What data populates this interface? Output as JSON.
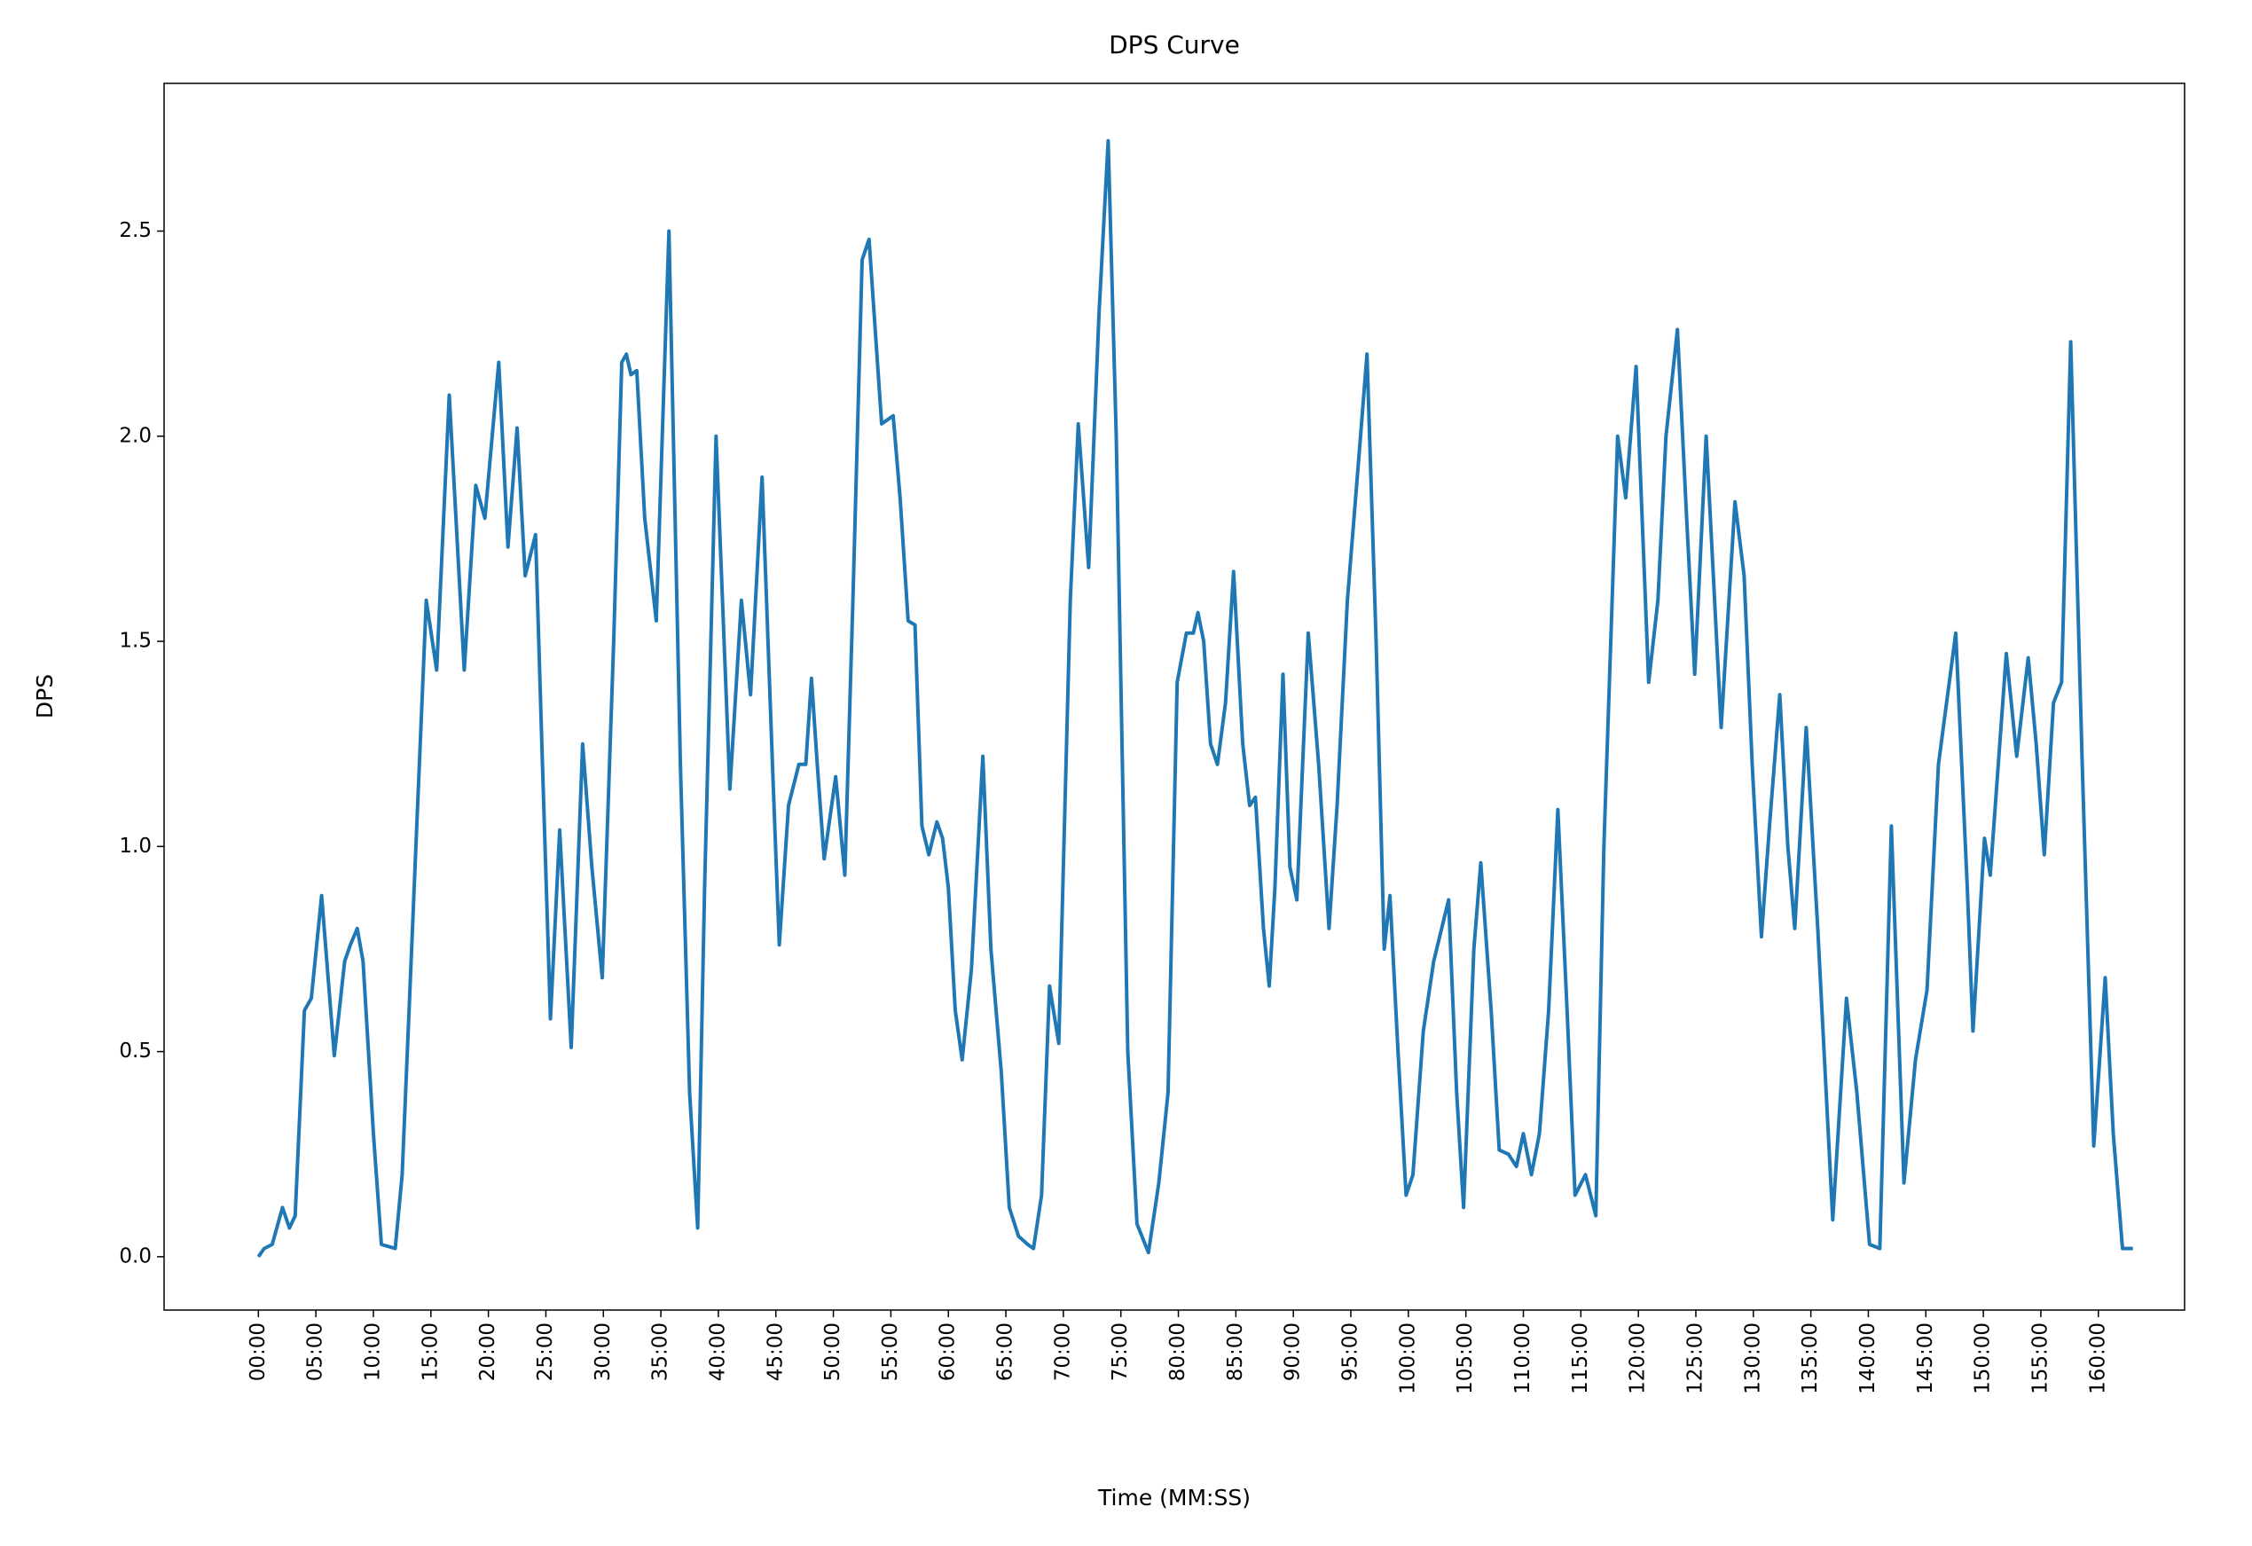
{
  "chart_data": {
    "type": "line",
    "title": "DPS Curve",
    "x_label": "Time (MM:SS)",
    "y_label": "DPS",
    "xlim": [
      -8.2,
      167.5
    ],
    "ylim": [
      -0.13,
      2.86
    ],
    "xticks": [
      {
        "value": 0,
        "label": "00:00"
      },
      {
        "value": 5,
        "label": "05:00"
      },
      {
        "value": 10,
        "label": "10:00"
      },
      {
        "value": 15,
        "label": "15:00"
      },
      {
        "value": 20,
        "label": "20:00"
      },
      {
        "value": 25,
        "label": "25:00"
      },
      {
        "value": 30,
        "label": "30:00"
      },
      {
        "value": 35,
        "label": "35:00"
      },
      {
        "value": 40,
        "label": "40:00"
      },
      {
        "value": 45,
        "label": "45:00"
      },
      {
        "value": 50,
        "label": "50:00"
      },
      {
        "value": 55,
        "label": "55:00"
      },
      {
        "value": 60,
        "label": "60:00"
      },
      {
        "value": 65,
        "label": "65:00"
      },
      {
        "value": 70,
        "label": "70:00"
      },
      {
        "value": 75,
        "label": "75:00"
      },
      {
        "value": 80,
        "label": "80:00"
      },
      {
        "value": 85,
        "label": "85:00"
      },
      {
        "value": 90,
        "label": "90:00"
      },
      {
        "value": 95,
        "label": "95:00"
      },
      {
        "value": 100,
        "label": "100:00"
      },
      {
        "value": 105,
        "label": "105:00"
      },
      {
        "value": 110,
        "label": "110:00"
      },
      {
        "value": 115,
        "label": "115:00"
      },
      {
        "value": 120,
        "label": "120:00"
      },
      {
        "value": 125,
        "label": "125:00"
      },
      {
        "value": 130,
        "label": "130:00"
      },
      {
        "value": 135,
        "label": "135:00"
      },
      {
        "value": 140,
        "label": "140:00"
      },
      {
        "value": 145,
        "label": "145:00"
      },
      {
        "value": 150,
        "label": "150:00"
      },
      {
        "value": 155,
        "label": "155:00"
      },
      {
        "value": 160,
        "label": "160:00"
      }
    ],
    "yticks": [
      {
        "value": 0,
        "label": "0.0"
      },
      {
        "value": 0.5,
        "label": "0.5"
      },
      {
        "value": 1,
        "label": "1.0"
      },
      {
        "value": 1.5,
        "label": "1.5"
      },
      {
        "value": 2,
        "label": "2.0"
      },
      {
        "value": 2.5,
        "label": "2.5"
      }
    ],
    "grid": false,
    "x": [
      0,
      0.5,
      1.2,
      2.1,
      2.7,
      3.2,
      4.0,
      4.6,
      5.5,
      6.6,
      7.5,
      8.0,
      8.6,
      9.1,
      10.0,
      10.7,
      11.9,
      12.5,
      13.1,
      13.7,
      14.6,
      15.5,
      16.6,
      17.9,
      18.9,
      19.7,
      20.9,
      21.7,
      22.5,
      23.2,
      24.1,
      24.7,
      25.4,
      26.2,
      27.2,
      28.2,
      29.0,
      29.9,
      30.9,
      31.6,
      32.0,
      32.4,
      32.9,
      33.6,
      34.6,
      35.7,
      36.7,
      37.5,
      38.2,
      38.8,
      39.8,
      41.0,
      42.0,
      42.8,
      43.8,
      44.7,
      45.3,
      46.1,
      47.0,
      47.6,
      48.1,
      48.6,
      49.2,
      50.2,
      51.0,
      51.7,
      52.5,
      53.1,
      54.2,
      55.2,
      55.8,
      56.5,
      57.1,
      57.7,
      58.3,
      59.0,
      59.5,
      60.0,
      60.6,
      61.2,
      62.0,
      63.0,
      63.7,
      64.6,
      65.3,
      66.1,
      66.9,
      67.4,
      68.1,
      68.8,
      69.6,
      70.6,
      71.3,
      72.2,
      73.1,
      73.9,
      74.6,
      75.6,
      76.4,
      77.4,
      78.3,
      79.1,
      79.9,
      80.7,
      81.3,
      81.7,
      82.2,
      82.8,
      83.4,
      84.1,
      84.8,
      85.6,
      86.2,
      86.7,
      87.4,
      87.9,
      88.4,
      89.1,
      89.7,
      90.3,
      91.3,
      92.2,
      93.1,
      93.8,
      94.7,
      95.7,
      96.4,
      97.2,
      97.9,
      98.4,
      99.1,
      99.8,
      100.4,
      101.3,
      102.2,
      102.9,
      103.5,
      104.2,
      104.8,
      105.7,
      106.3,
      107.2,
      107.9,
      108.7,
      109.4,
      110.0,
      110.7,
      111.4,
      112.2,
      113.0,
      113.8,
      114.5,
      115.4,
      116.3,
      117.0,
      118.2,
      118.9,
      119.8,
      120.9,
      121.7,
      122.4,
      123.4,
      124.2,
      124.9,
      125.9,
      127.2,
      128.4,
      129.2,
      129.9,
      130.7,
      131.4,
      132.3,
      133.0,
      133.6,
      134.6,
      135.6,
      136.9,
      138.1,
      139.0,
      140.1,
      141.0,
      142.0,
      143.1,
      144.1,
      145.1,
      146.1,
      147.6,
      148.6,
      149.1,
      150.1,
      150.6,
      152.0,
      152.9,
      153.9,
      154.6,
      155.3,
      156.1,
      156.8,
      157.6,
      158.6,
      159.6,
      160.6,
      161.3,
      162.1,
      163.0
    ],
    "series": [
      {
        "name": "DPS",
        "color": "#1f77b4",
        "values": [
          0,
          0.02,
          0.03,
          0.12,
          0.07,
          0.1,
          0.6,
          0.63,
          0.88,
          0.49,
          0.72,
          0.76,
          0.8,
          0.72,
          0.3,
          0.03,
          0.02,
          0.2,
          0.6,
          1.0,
          1.6,
          1.43,
          2.1,
          1.43,
          1.88,
          1.8,
          2.18,
          1.73,
          2.02,
          1.66,
          1.76,
          1.2,
          0.58,
          1.04,
          0.51,
          1.25,
          0.95,
          0.68,
          1.5,
          2.18,
          2.2,
          2.15,
          2.16,
          1.8,
          1.55,
          2.5,
          1.2,
          0.4,
          0.07,
          0.9,
          2.0,
          1.14,
          1.6,
          1.37,
          1.9,
          1.2,
          0.76,
          1.1,
          1.2,
          1.2,
          1.41,
          1.2,
          0.97,
          1.17,
          0.93,
          1.6,
          2.43,
          2.48,
          2.03,
          2.05,
          1.85,
          1.55,
          1.54,
          1.05,
          0.98,
          1.06,
          1.02,
          0.9,
          0.6,
          0.48,
          0.7,
          1.22,
          0.75,
          0.45,
          0.12,
          0.05,
          0.03,
          0.02,
          0.15,
          0.66,
          0.52,
          1.6,
          2.03,
          1.68,
          2.3,
          2.72,
          2.0,
          0.5,
          0.08,
          0.01,
          0.18,
          0.4,
          1.4,
          1.52,
          1.52,
          1.57,
          1.5,
          1.25,
          1.2,
          1.35,
          1.67,
          1.25,
          1.1,
          1.12,
          0.8,
          0.66,
          0.9,
          1.42,
          0.95,
          0.87,
          1.52,
          1.2,
          0.8,
          1.1,
          1.6,
          1.95,
          2.2,
          1.5,
          0.75,
          0.88,
          0.5,
          0.15,
          0.2,
          0.55,
          0.72,
          0.8,
          0.87,
          0.4,
          0.12,
          0.75,
          0.96,
          0.6,
          0.26,
          0.25,
          0.22,
          0.3,
          0.2,
          0.3,
          0.6,
          1.09,
          0.6,
          0.15,
          0.2,
          0.1,
          1.0,
          2.0,
          1.85,
          2.17,
          1.4,
          1.6,
          2.0,
          2.26,
          1.8,
          1.42,
          2.0,
          1.29,
          1.84,
          1.66,
          1.2,
          0.78,
          1.05,
          1.37,
          1.0,
          0.8,
          1.29,
          0.8,
          0.09,
          0.63,
          0.4,
          0.03,
          0.02,
          1.05,
          0.18,
          0.48,
          0.65,
          1.2,
          1.52,
          0.9,
          0.55,
          1.02,
          0.93,
          1.47,
          1.22,
          1.46,
          1.25,
          0.98,
          1.35,
          1.4,
          2.23,
          1.2,
          0.27,
          0.68,
          0.3,
          0.02,
          0.02
        ]
      }
    ]
  }
}
